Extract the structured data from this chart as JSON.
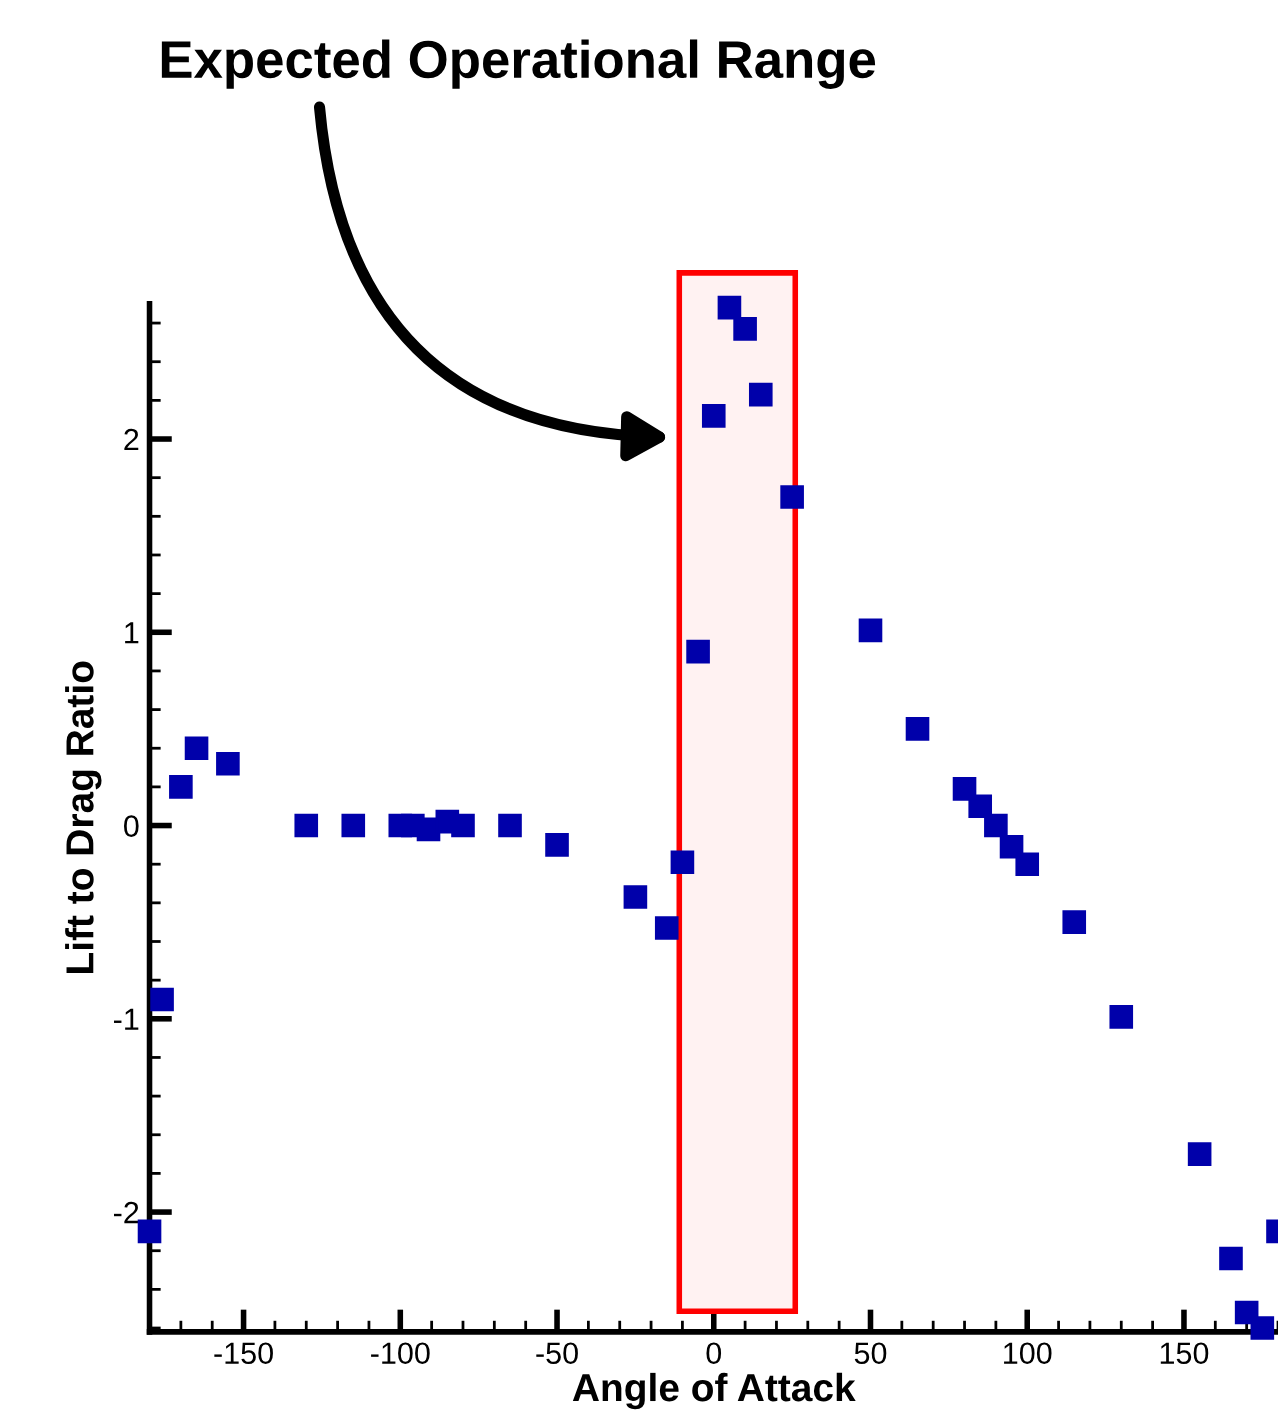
{
  "chart_data": {
    "type": "scatter",
    "xlabel": "Angle of Attack",
    "ylabel": "Lift to Drag Ratio",
    "x": [
      -180,
      -176,
      -170,
      -165,
      -155,
      -130,
      -115,
      -100,
      -96,
      -91,
      -85,
      -80,
      -65,
      -50,
      -25,
      -15,
      -10,
      -5,
      0,
      5,
      10,
      15,
      25,
      50,
      65,
      80,
      85,
      90,
      95,
      100,
      115,
      130,
      155,
      165,
      170,
      175,
      180
    ],
    "series": [
      {
        "color": "#0000aa",
        "values": [
          -2.1,
          -0.9,
          0.2,
          0.4,
          0.32,
          0,
          0,
          0,
          0,
          -0.02,
          0.02,
          0,
          0,
          -0.1,
          -0.37,
          -0.53,
          -0.19,
          0.9,
          2.12,
          2.68,
          2.57,
          2.23,
          1.7,
          1.01,
          0.5,
          0.19,
          0.1,
          0,
          -0.11,
          -0.2,
          -0.5,
          -0.99,
          -1.7,
          -2.24,
          -2.52,
          -2.6,
          -2.1
        ]
      }
    ],
    "marker": "square",
    "xlim": [
      -180,
      180
    ],
    "ylim": [
      -2.62,
      2.7
    ],
    "xticks": [
      -150,
      -100,
      -50,
      0,
      50,
      100,
      150
    ],
    "yticks": [
      -2,
      -1,
      0,
      1,
      2
    ],
    "bands": [
      {
        "axis": "x",
        "from": -11,
        "to": 26,
        "color": "#ff0000"
      }
    ],
    "annotations": [
      "Expected Operational Range"
    ],
    "grid": false,
    "legend": false
  }
}
